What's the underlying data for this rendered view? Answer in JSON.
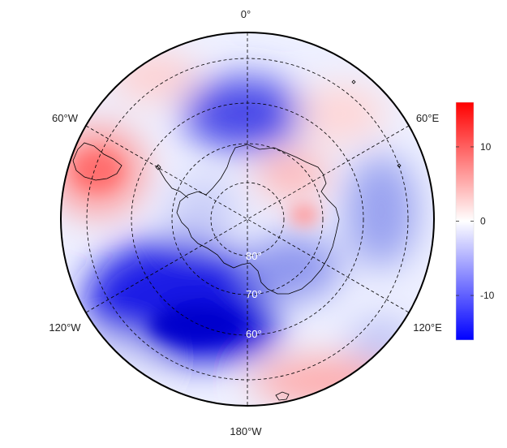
{
  "map": {
    "projection": "south-polar-stereographic",
    "lon_labels": {
      "top": "0°",
      "upper_left": "60°W",
      "upper_right": "60°E",
      "lower_left": "120°W",
      "lower_right": "120°E",
      "bottom": "180°W"
    },
    "lat_labels": [
      "80°",
      "70°",
      "60°"
    ],
    "graticule_style": "dashed"
  },
  "colorbar": {
    "ticks": [
      {
        "value": 10,
        "label": "10"
      },
      {
        "value": 0,
        "label": "0"
      },
      {
        "value": -10,
        "label": "-10"
      }
    ],
    "range": [
      -16,
      16
    ],
    "colormap": "bwr",
    "colors": {
      "low": "#0000ff",
      "mid": "#ffffff",
      "high": "#ff0000"
    }
  }
}
